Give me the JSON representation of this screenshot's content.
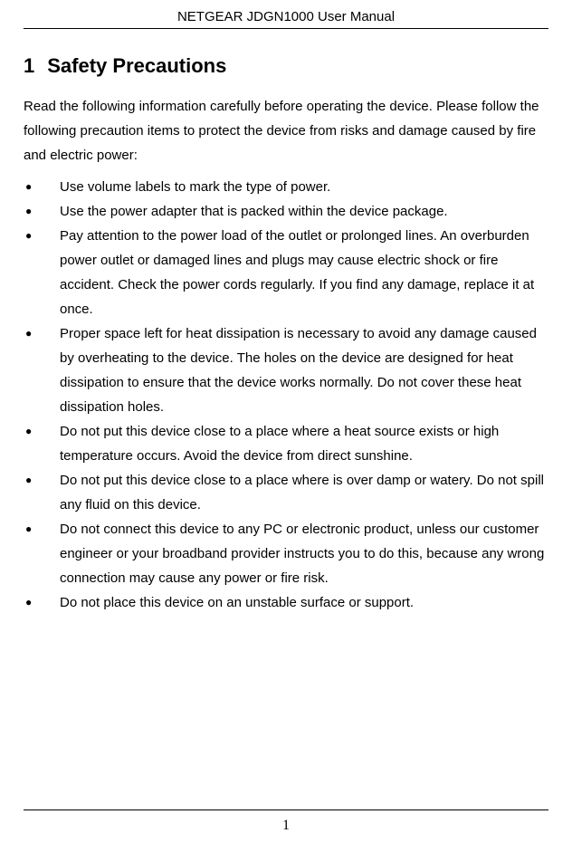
{
  "header": {
    "title": "NETGEAR JDGN1000 User Manual"
  },
  "section": {
    "number": "1",
    "title": "Safety Precautions"
  },
  "intro": "Read the following information carefully before operating the device. Please follow the following precaution items to protect the device from risks and damage caused by fire and electric power:",
  "bullets": [
    "Use volume labels to mark the type of power.",
    "Use the power adapter that is packed within the device package.",
    "Pay attention to the power load of the outlet or prolonged lines. An overburden power outlet or damaged lines and plugs may cause electric shock or fire accident. Check the power cords regularly. If you find any damage, replace it at once.",
    "Proper space left for heat dissipation is necessary to avoid any damage caused by overheating to the device. The holes on the device are designed for heat dissipation to ensure that the device works normally. Do not cover these heat dissipation holes.",
    "Do not put this device close to a place where a heat source exists or high temperature occurs. Avoid the device from direct sunshine.",
    "Do not put this device close to a place where is over damp or watery. Do not spill any fluid on this device.",
    "Do not connect this device to any PC or electronic product, unless our customer engineer or your broadband provider instructs you to do this, because any wrong connection may cause any power or fire risk.",
    "Do not place this device on an unstable surface or support."
  ],
  "footer": {
    "page_number": "1"
  }
}
